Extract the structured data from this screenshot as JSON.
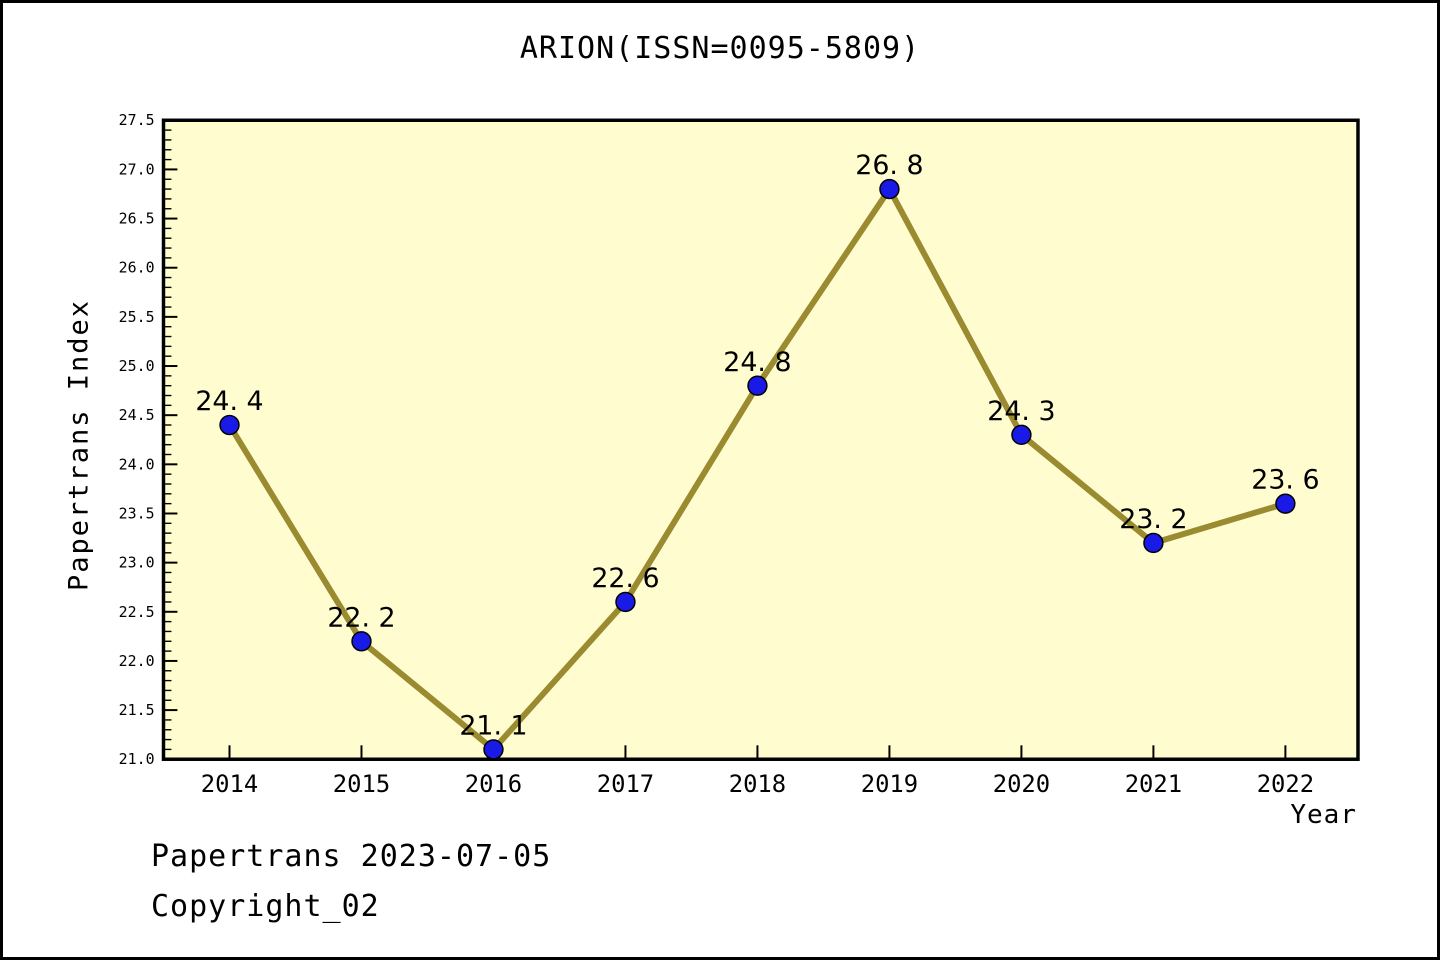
{
  "footer": {
    "line1": "Papertrans 2023-07-05",
    "line2": "Copyright_02"
  },
  "chart_data": {
    "type": "line",
    "title": "ARION(ISSN=0095-5809)",
    "xlabel": "Year",
    "ylabel": "Papertrans Index",
    "x": [
      2014,
      2015,
      2016,
      2017,
      2018,
      2019,
      2020,
      2021,
      2022
    ],
    "values": [
      24.4,
      22.2,
      21.1,
      22.6,
      24.8,
      26.8,
      24.3,
      23.2,
      23.6
    ],
    "xlim": [
      2013.5,
      2022.55
    ],
    "ylim": [
      21.0,
      27.5
    ],
    "y_major_tick_step": 0.5,
    "y_minor_tick_step": 0.1,
    "grid": false,
    "legend": false,
    "colors": {
      "page_bg": "#FFFFFF",
      "frame_border": "#000000",
      "plot_bg": "#FFFDD0",
      "line": "#9A8A30",
      "marker_fill": "#1A1AE6",
      "marker_edge": "#000000",
      "axis": "#000000",
      "text": "#000000"
    }
  }
}
